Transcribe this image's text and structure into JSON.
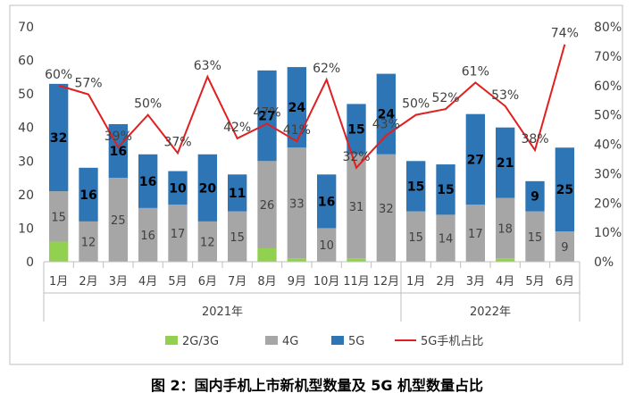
{
  "caption": "图 2：国内手机上市新机型数量及 5G 机型数量占比",
  "chart_data": {
    "type": "bar",
    "stacked": true,
    "categories": [
      "1月",
      "2月",
      "3月",
      "4月",
      "5月",
      "6月",
      "7月",
      "8月",
      "9月",
      "10月",
      "11月",
      "12月",
      "1月",
      "2月",
      "3月",
      "4月",
      "5月",
      "6月"
    ],
    "year_groups": [
      {
        "label": "2021年",
        "start": 0,
        "end": 11
      },
      {
        "label": "2022年",
        "start": 12,
        "end": 17
      }
    ],
    "series": [
      {
        "name": "2G/3G",
        "color": "#92d050",
        "values": [
          6,
          0,
          0,
          0,
          0,
          0,
          0,
          4,
          1,
          0,
          1,
          0,
          0,
          0,
          0,
          1,
          0,
          0
        ]
      },
      {
        "name": "4G",
        "color": "#a6a6a6",
        "values": [
          15,
          12,
          25,
          16,
          17,
          12,
          15,
          26,
          33,
          10,
          31,
          32,
          15,
          14,
          17,
          18,
          15,
          9
        ],
        "labels": [
          "15",
          "12",
          "25",
          "16",
          "17",
          "12",
          "15",
          "26",
          "33",
          "10",
          "31",
          "32",
          "15",
          "14",
          "17",
          "18",
          "15",
          "9"
        ]
      },
      {
        "name": "5G",
        "color": "#2e75b6",
        "values": [
          32,
          16,
          16,
          16,
          10,
          20,
          11,
          27,
          24,
          16,
          15,
          24,
          15,
          15,
          27,
          21,
          9,
          25
        ],
        "labels": [
          "32",
          "16",
          "16",
          "16",
          "10",
          "20",
          "11",
          "27",
          "24",
          "16",
          "15",
          "24",
          "15",
          "15",
          "27",
          "21",
          "9",
          "25"
        ]
      }
    ],
    "line": {
      "name": "5G手机占比",
      "color": "#e02020",
      "values": [
        60,
        57,
        39,
        50,
        37,
        63,
        42,
        47,
        41,
        62,
        32,
        43,
        50,
        52,
        61,
        53,
        38,
        74
      ],
      "labels": [
        "60%",
        "57%",
        "39%",
        "50%",
        "37%",
        "63%",
        "42%",
        "47%",
        "41%",
        "62%",
        "32%",
        "43%",
        "50%",
        "52%",
        "61%",
        "53%",
        "38%",
        "74%"
      ]
    },
    "y_left": {
      "min": 0,
      "max": 70,
      "ticks": [
        "0",
        "10",
        "20",
        "30",
        "40",
        "50",
        "60",
        "70"
      ]
    },
    "y_right": {
      "min": 0,
      "max": 80,
      "ticks": [
        "0%",
        "10%",
        "20%",
        "30%",
        "40%",
        "50%",
        "60%",
        "70%",
        "80%"
      ]
    },
    "legend": {
      "position": "bottom",
      "items": [
        "2G/3G",
        "4G",
        "5G",
        "5G手机占比"
      ]
    }
  }
}
